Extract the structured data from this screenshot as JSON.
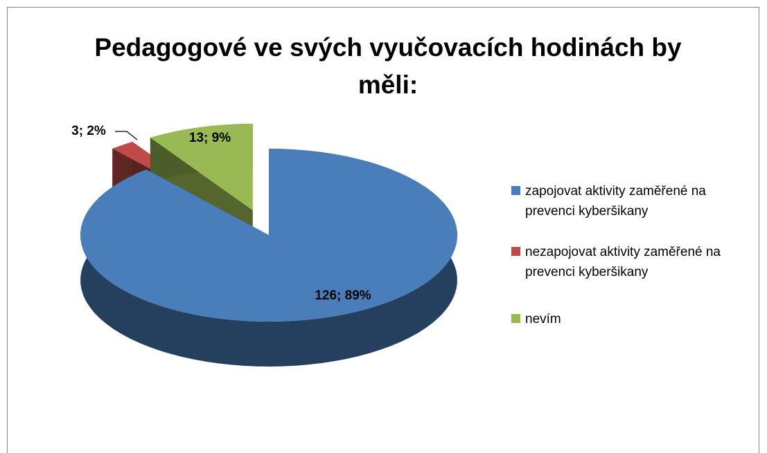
{
  "chart_data": {
    "type": "pie",
    "title": "Pedagogové ve svých vyučovacích hodinách by měli:",
    "categories": [
      "zapojovat aktivity zaměřené na prevenci kyberšikany",
      "nezapojovat aktivity zaměřené na prevenci kyberšikany",
      "nevím"
    ],
    "values": [
      126,
      3,
      13
    ],
    "value_labels": [
      "126; 89%",
      "3; 2%",
      "13; 9%"
    ],
    "colors": [
      "#4a7ebb",
      "#be4b48",
      "#98b954"
    ],
    "legend": "right"
  }
}
